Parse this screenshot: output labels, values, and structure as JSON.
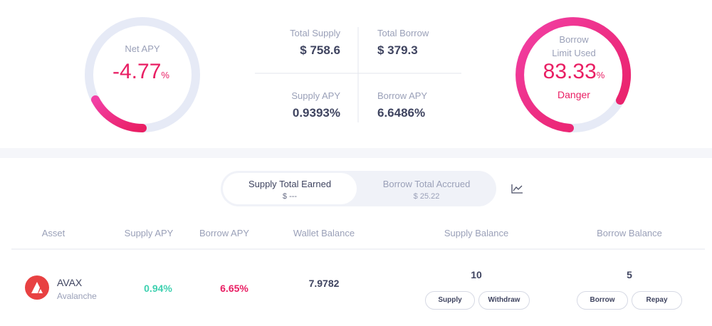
{
  "summary": {
    "net_apy": {
      "label": "Net APY",
      "value": "-4.77",
      "unit": "%"
    },
    "total_supply": {
      "label": "Total Supply",
      "value": "$ 758.6"
    },
    "total_borrow": {
      "label": "Total Borrow",
      "value": "$ 379.3"
    },
    "supply_apy": {
      "label": "Supply APY",
      "value": "0.9393%"
    },
    "borrow_apy": {
      "label": "Borrow APY",
      "value": "6.6486%"
    },
    "borrow_limit": {
      "label_1": "Borrow",
      "label_2": "Limit Used",
      "value": "83.33",
      "unit": "%",
      "status": "Danger"
    }
  },
  "tabs": [
    {
      "title": "Supply Total Earned",
      "value": "$ ---"
    },
    {
      "title": "Borrow Total Accrued",
      "value": "$ 25.22"
    }
  ],
  "table": {
    "headers": [
      "Asset",
      "Supply APY",
      "Borrow APY",
      "Wallet Balance",
      "Supply Balance",
      "Borrow Balance"
    ],
    "rows": [
      {
        "symbol": "AVAX",
        "name": "Avalanche",
        "supply_apy": "0.94%",
        "borrow_apy": "6.65%",
        "wallet_balance": "7.9782",
        "supply_balance": "10",
        "supply_actions": [
          "Supply",
          "Withdraw"
        ],
        "borrow_balance": "5",
        "borrow_actions": [
          "Borrow",
          "Repay"
        ]
      }
    ]
  }
}
